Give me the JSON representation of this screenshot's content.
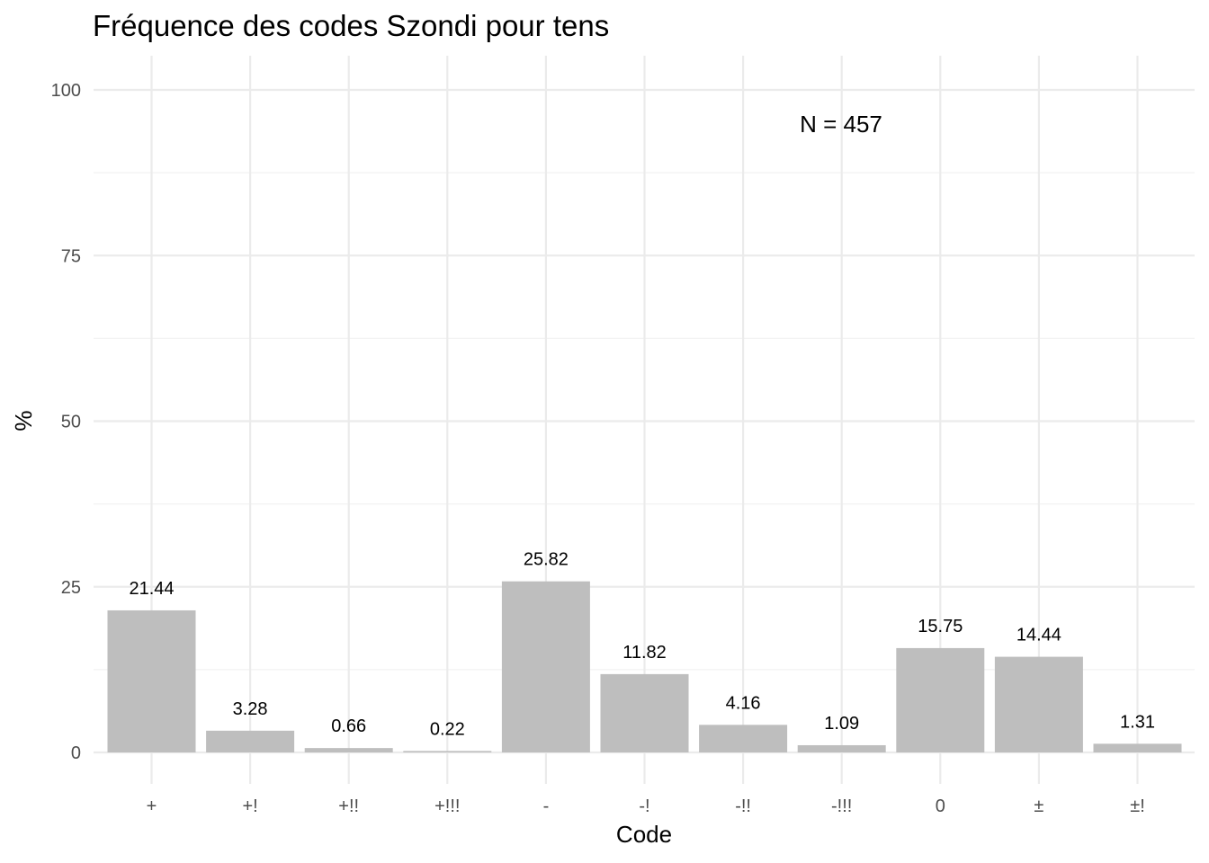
{
  "chart_data": {
    "type": "bar",
    "title": "Fréquence des codes Szondi pour tens",
    "xlabel": "Code",
    "ylabel": "%",
    "categories": [
      "+",
      "+!",
      "+!!",
      "+!!!",
      "-",
      "-!",
      "-!!",
      "-!!!",
      "0",
      "±",
      "±!"
    ],
    "values": [
      21.44,
      3.28,
      0.66,
      0.22,
      25.82,
      11.82,
      4.16,
      1.09,
      15.75,
      14.44,
      1.31
    ],
    "value_labels": [
      "21.44",
      "3.28",
      "0.66",
      "0.22",
      "25.82",
      "11.82",
      "4.16",
      "1.09",
      "15.75",
      "14.44",
      "1.31"
    ],
    "ylim": [
      0,
      100
    ],
    "yticks": [
      0,
      25,
      50,
      75,
      100
    ],
    "ytick_labels": [
      "0",
      "25",
      "50",
      "75",
      "100"
    ],
    "grid": true,
    "bar_color": "#bebebe",
    "annotation": "N = 457"
  }
}
